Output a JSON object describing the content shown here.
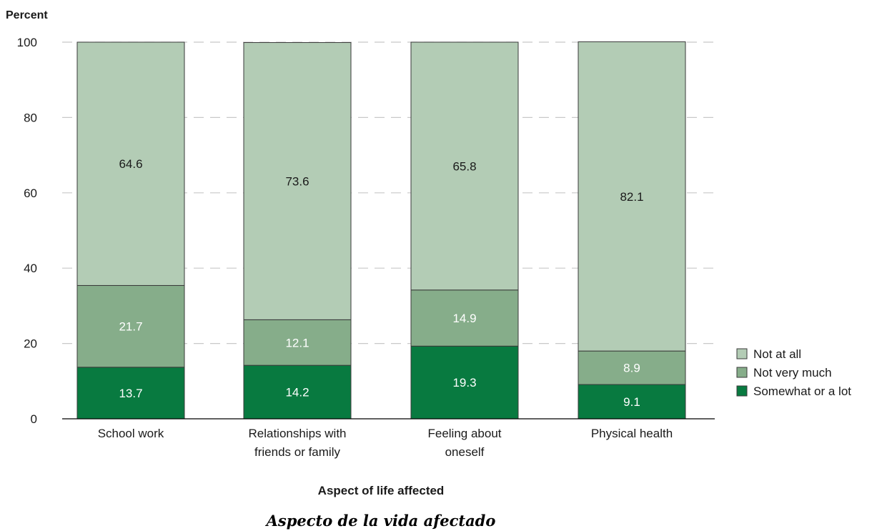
{
  "chart_data": {
    "type": "bar",
    "stacked": true,
    "ylabel": "Percent",
    "xlabel": "Aspect of life affected",
    "subtitle": "Aspecto de la vida afectado",
    "ylim": [
      0,
      100
    ],
    "yticks": [
      "0",
      "20",
      "40",
      "60",
      "80",
      "100"
    ],
    "grid": "horizontal-dashed",
    "legend_position": "right",
    "categories": [
      [
        "School work"
      ],
      [
        "Relationships with",
        "friends or family"
      ],
      [
        "Feeling about",
        "oneself"
      ],
      [
        "Physical health"
      ]
    ],
    "series": [
      {
        "name": "Somewhat or a lot",
        "color": "#087a40",
        "label_color": "#ffffff",
        "values": [
          13.7,
          14.2,
          19.3,
          9.1
        ],
        "labels": [
          "13.7",
          "14.2",
          "19.3",
          "9.1"
        ]
      },
      {
        "name": "Not very much",
        "color": "#86ad8a",
        "label_color": "#ffffff",
        "values": [
          21.7,
          12.1,
          14.9,
          8.9
        ],
        "labels": [
          "21.7",
          "12.1",
          "14.9",
          "8.9"
        ]
      },
      {
        "name": "Not at all",
        "color": "#b3ccb5",
        "label_color": "#1a1a1a",
        "values": [
          64.6,
          73.6,
          65.8,
          82.1
        ],
        "labels": [
          "64.6",
          "73.6",
          "65.8",
          "82.1"
        ]
      }
    ],
    "legend_order": [
      "Not at all",
      "Not very much",
      "Somewhat or a lot"
    ]
  }
}
